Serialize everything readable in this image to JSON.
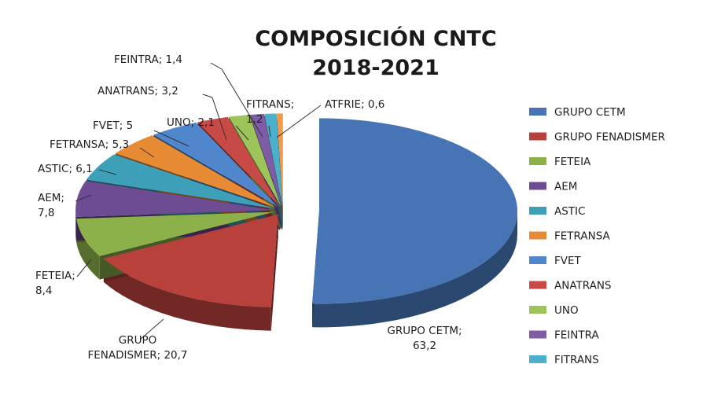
{
  "chart_data": {
    "type": "pie",
    "title": "COMPOSICIÓN CNTC",
    "subtitle": "2018-2021",
    "categories": [
      "GRUPO CETM",
      "GRUPO FENADISMER",
      "FETEIA",
      "AEM",
      "ASTIC",
      "FETRANSA",
      "FVET",
      "ANATRANS",
      "UNO",
      "FEINTRA",
      "FITRANS",
      "ATFRIE"
    ],
    "values": [
      63.2,
      20.7,
      8.4,
      7.8,
      6.1,
      5.3,
      5,
      3.2,
      2.1,
      1.4,
      1.2,
      0.6
    ],
    "value_labels": [
      "GRUPO CETM;|63,2",
      "GRUPO|FENADISMER; 20,7",
      "FETEIA;|8,4",
      "AEM;|7,8",
      "ASTIC; 6,1",
      "FETRANSA; 5,3",
      "FVET; 5",
      "ANATRANS; 3,2",
      "UNO; 2,1",
      "FEINTRA; 1,4",
      "FITRANS;|1,2",
      "ATFRIE; 0,6"
    ],
    "colors": [
      "#4674b4",
      "#b8413c",
      "#8cb04a",
      "#6e4c94",
      "#3e9fb8",
      "#e68a34",
      "#4f86cc",
      "#c84a46",
      "#9dc45a",
      "#7e5ca6",
      "#4ab0cc",
      "#f09a4a"
    ],
    "legend": {
      "position": "right",
      "entries": [
        "GRUPO CETM",
        "GRUPO FENADISMER",
        "FETEIA",
        "AEM",
        "ASTIC",
        "FETRANSA",
        "FVET",
        "ANATRANS",
        "UNO",
        "FEINTRA",
        "FITRANS"
      ]
    },
    "style": "3d-exploded"
  }
}
